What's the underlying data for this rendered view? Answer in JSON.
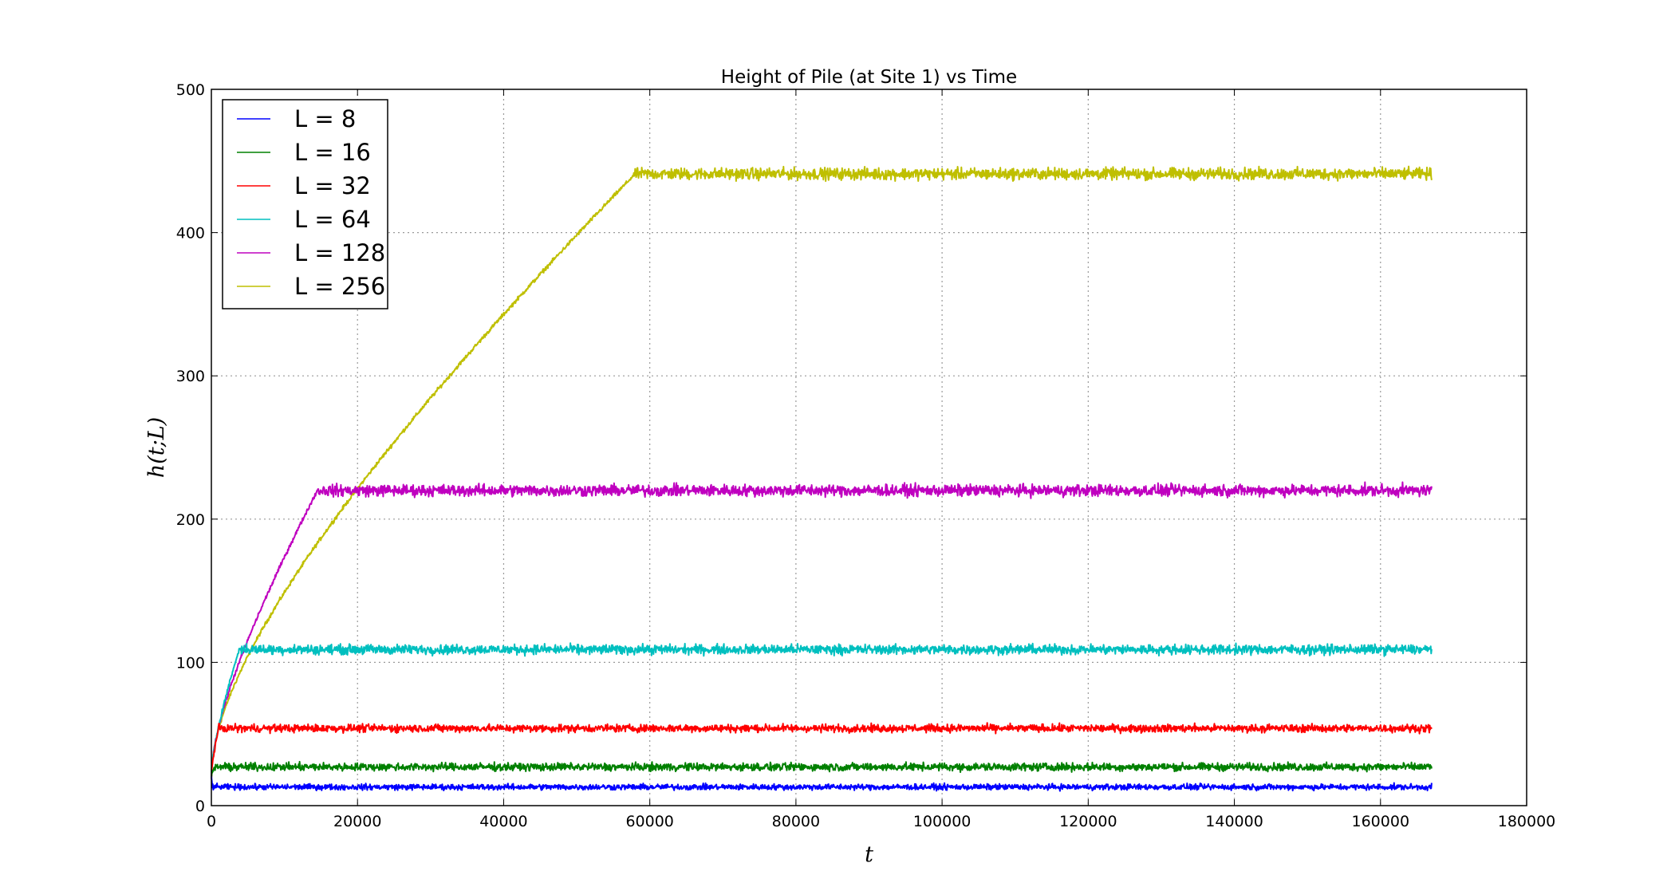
{
  "chart_data": {
    "type": "line",
    "title": "Height of Pile (at Site 1) vs Time",
    "xlabel": "t",
    "ylabel": "h(t;L)",
    "xlim": [
      0,
      180000
    ],
    "ylim": [
      0,
      500
    ],
    "xticks": [
      0,
      20000,
      40000,
      60000,
      80000,
      100000,
      120000,
      140000,
      160000,
      180000
    ],
    "yticks": [
      0,
      100,
      200,
      300,
      400,
      500
    ],
    "grid": true,
    "legend_position": "top-left",
    "t_max": 167000,
    "series": [
      {
        "name": "L = 8",
        "color": "#0000ff",
        "plateau": 13,
        "t_sat": 150,
        "noise": 3
      },
      {
        "name": "L = 16",
        "color": "#008000",
        "plateau": 27,
        "t_sat": 500,
        "noise": 4
      },
      {
        "name": "L = 32",
        "color": "#ff0000",
        "plateau": 54,
        "t_sat": 1000,
        "noise": 4
      },
      {
        "name": "L = 64",
        "color": "#00bfbf",
        "plateau": 109,
        "t_sat": 3800,
        "noise": 5
      },
      {
        "name": "L = 128",
        "color": "#bf00bf",
        "plateau": 220,
        "t_sat": 14500,
        "noise": 6
      },
      {
        "name": "L = 256",
        "color": "#bfbf00",
        "plateau": 441,
        "t_sat": 58000,
        "noise": 6
      }
    ]
  }
}
